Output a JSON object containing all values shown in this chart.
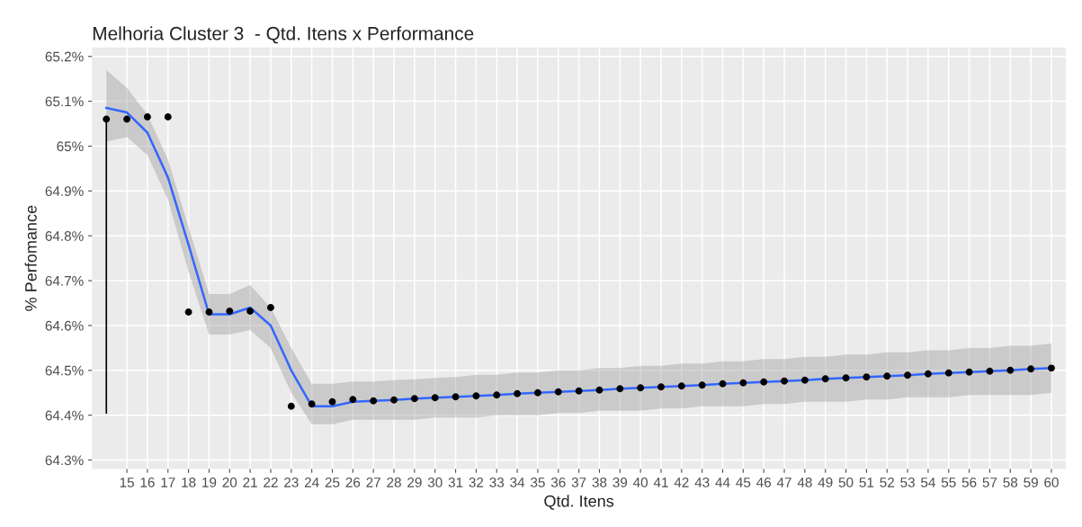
{
  "chart_data": {
    "type": "scatter",
    "title": "Melhoria Cluster 3  - Qtd. Itens x Performance",
    "xlabel": "Qtd. Itens",
    "ylabel": "% Perfomance",
    "xlim": [
      13.3,
      60.7
    ],
    "xticks": [
      15,
      16,
      17,
      18,
      19,
      20,
      21,
      22,
      23,
      24,
      25,
      26,
      27,
      28,
      29,
      30,
      31,
      32,
      33,
      34,
      35,
      36,
      37,
      38,
      39,
      40,
      41,
      42,
      43,
      44,
      45,
      46,
      47,
      48,
      49,
      50,
      51,
      52,
      53,
      54,
      55,
      56,
      57,
      58,
      59,
      60
    ],
    "ylim": [
      64.28,
      65.22
    ],
    "yticks": [
      {
        "value": 64.3,
        "label": "64.3%"
      },
      {
        "value": 64.4,
        "label": "64.4%"
      },
      {
        "value": 64.5,
        "label": "64.5%"
      },
      {
        "value": 64.6,
        "label": "64.6%"
      },
      {
        "value": 64.7,
        "label": "64.7%"
      },
      {
        "value": 64.8,
        "label": "64.8%"
      },
      {
        "value": 64.9,
        "label": "64.9%"
      },
      {
        "value": 65.0,
        "label": "65%"
      },
      {
        "value": 65.1,
        "label": "65.1%"
      },
      {
        "value": 65.2,
        "label": "65.2%"
      }
    ],
    "grid": true,
    "series": [
      {
        "type": "line",
        "color": "#000000",
        "x": [
          14,
          14
        ],
        "values": [
          65.06,
          64.405
        ]
      },
      {
        "type": "line",
        "color": "#3366ff",
        "x": [
          14,
          15,
          16,
          17,
          18,
          19,
          20,
          21,
          22,
          23,
          24,
          25,
          26,
          27,
          28,
          29,
          30,
          31,
          32,
          33,
          34,
          35,
          36,
          37,
          38,
          39,
          40,
          41,
          42,
          43,
          44,
          45,
          46,
          47,
          48,
          49,
          50,
          51,
          52,
          53,
          54,
          55,
          56,
          57,
          58,
          59,
          60
        ],
        "values": [
          65.085,
          65.075,
          65.03,
          64.93,
          64.78,
          64.625,
          64.625,
          64.64,
          64.6,
          64.5,
          64.42,
          64.42,
          64.43,
          64.432,
          64.434,
          64.437,
          64.439,
          64.441,
          64.443,
          64.445,
          64.448,
          64.45,
          64.452,
          64.454,
          64.456,
          64.459,
          64.461,
          64.463,
          64.465,
          64.467,
          64.47,
          64.472,
          64.474,
          64.476,
          64.478,
          64.481,
          64.483,
          64.485,
          64.487,
          64.489,
          64.492,
          64.494,
          64.496,
          64.498,
          64.5,
          64.503,
          64.505
        ],
        "lower": [
          65.01,
          65.02,
          64.98,
          64.88,
          64.72,
          64.58,
          64.58,
          64.59,
          64.55,
          64.45,
          64.38,
          64.38,
          64.39,
          64.39,
          64.39,
          64.39,
          64.395,
          64.395,
          64.395,
          64.4,
          64.4,
          64.4,
          64.405,
          64.405,
          64.41,
          64.41,
          64.41,
          64.415,
          64.415,
          64.42,
          64.42,
          64.42,
          64.425,
          64.425,
          64.43,
          64.43,
          64.43,
          64.435,
          64.435,
          64.44,
          64.44,
          64.44,
          64.445,
          64.445,
          64.445,
          64.445,
          64.45
        ],
        "upper": [
          65.17,
          65.13,
          65.07,
          64.97,
          64.82,
          64.67,
          64.67,
          64.69,
          64.64,
          64.55,
          64.47,
          64.47,
          64.475,
          64.475,
          64.478,
          64.48,
          64.483,
          64.485,
          64.49,
          64.49,
          64.495,
          64.495,
          64.5,
          64.5,
          64.505,
          64.505,
          64.51,
          64.51,
          64.515,
          64.515,
          64.52,
          64.52,
          64.525,
          64.525,
          64.53,
          64.53,
          64.535,
          64.535,
          64.54,
          64.54,
          64.545,
          64.545,
          64.55,
          64.55,
          64.555,
          64.555,
          64.56
        ]
      },
      {
        "color": "#000000",
        "marker": "circle",
        "x": [
          14,
          15,
          16,
          17,
          18,
          19,
          20,
          21,
          22,
          23,
          24,
          25,
          26,
          27,
          28,
          29,
          30,
          31,
          32,
          33,
          34,
          35,
          36,
          37,
          38,
          39,
          40,
          41,
          42,
          43,
          44,
          45,
          46,
          47,
          48,
          49,
          50,
          51,
          52,
          53,
          54,
          55,
          56,
          57,
          58,
          59,
          60
        ],
        "values": [
          65.06,
          65.06,
          65.065,
          65.065,
          64.63,
          64.63,
          64.632,
          64.632,
          64.64,
          64.42,
          64.425,
          64.43,
          64.435,
          64.432,
          64.434,
          64.437,
          64.439,
          64.441,
          64.443,
          64.445,
          64.448,
          64.45,
          64.452,
          64.454,
          64.456,
          64.459,
          64.461,
          64.463,
          64.465,
          64.467,
          64.47,
          64.472,
          64.474,
          64.476,
          64.478,
          64.481,
          64.483,
          64.485,
          64.487,
          64.489,
          64.492,
          64.494,
          64.496,
          64.498,
          64.5,
          64.503,
          64.505
        ]
      }
    ]
  }
}
